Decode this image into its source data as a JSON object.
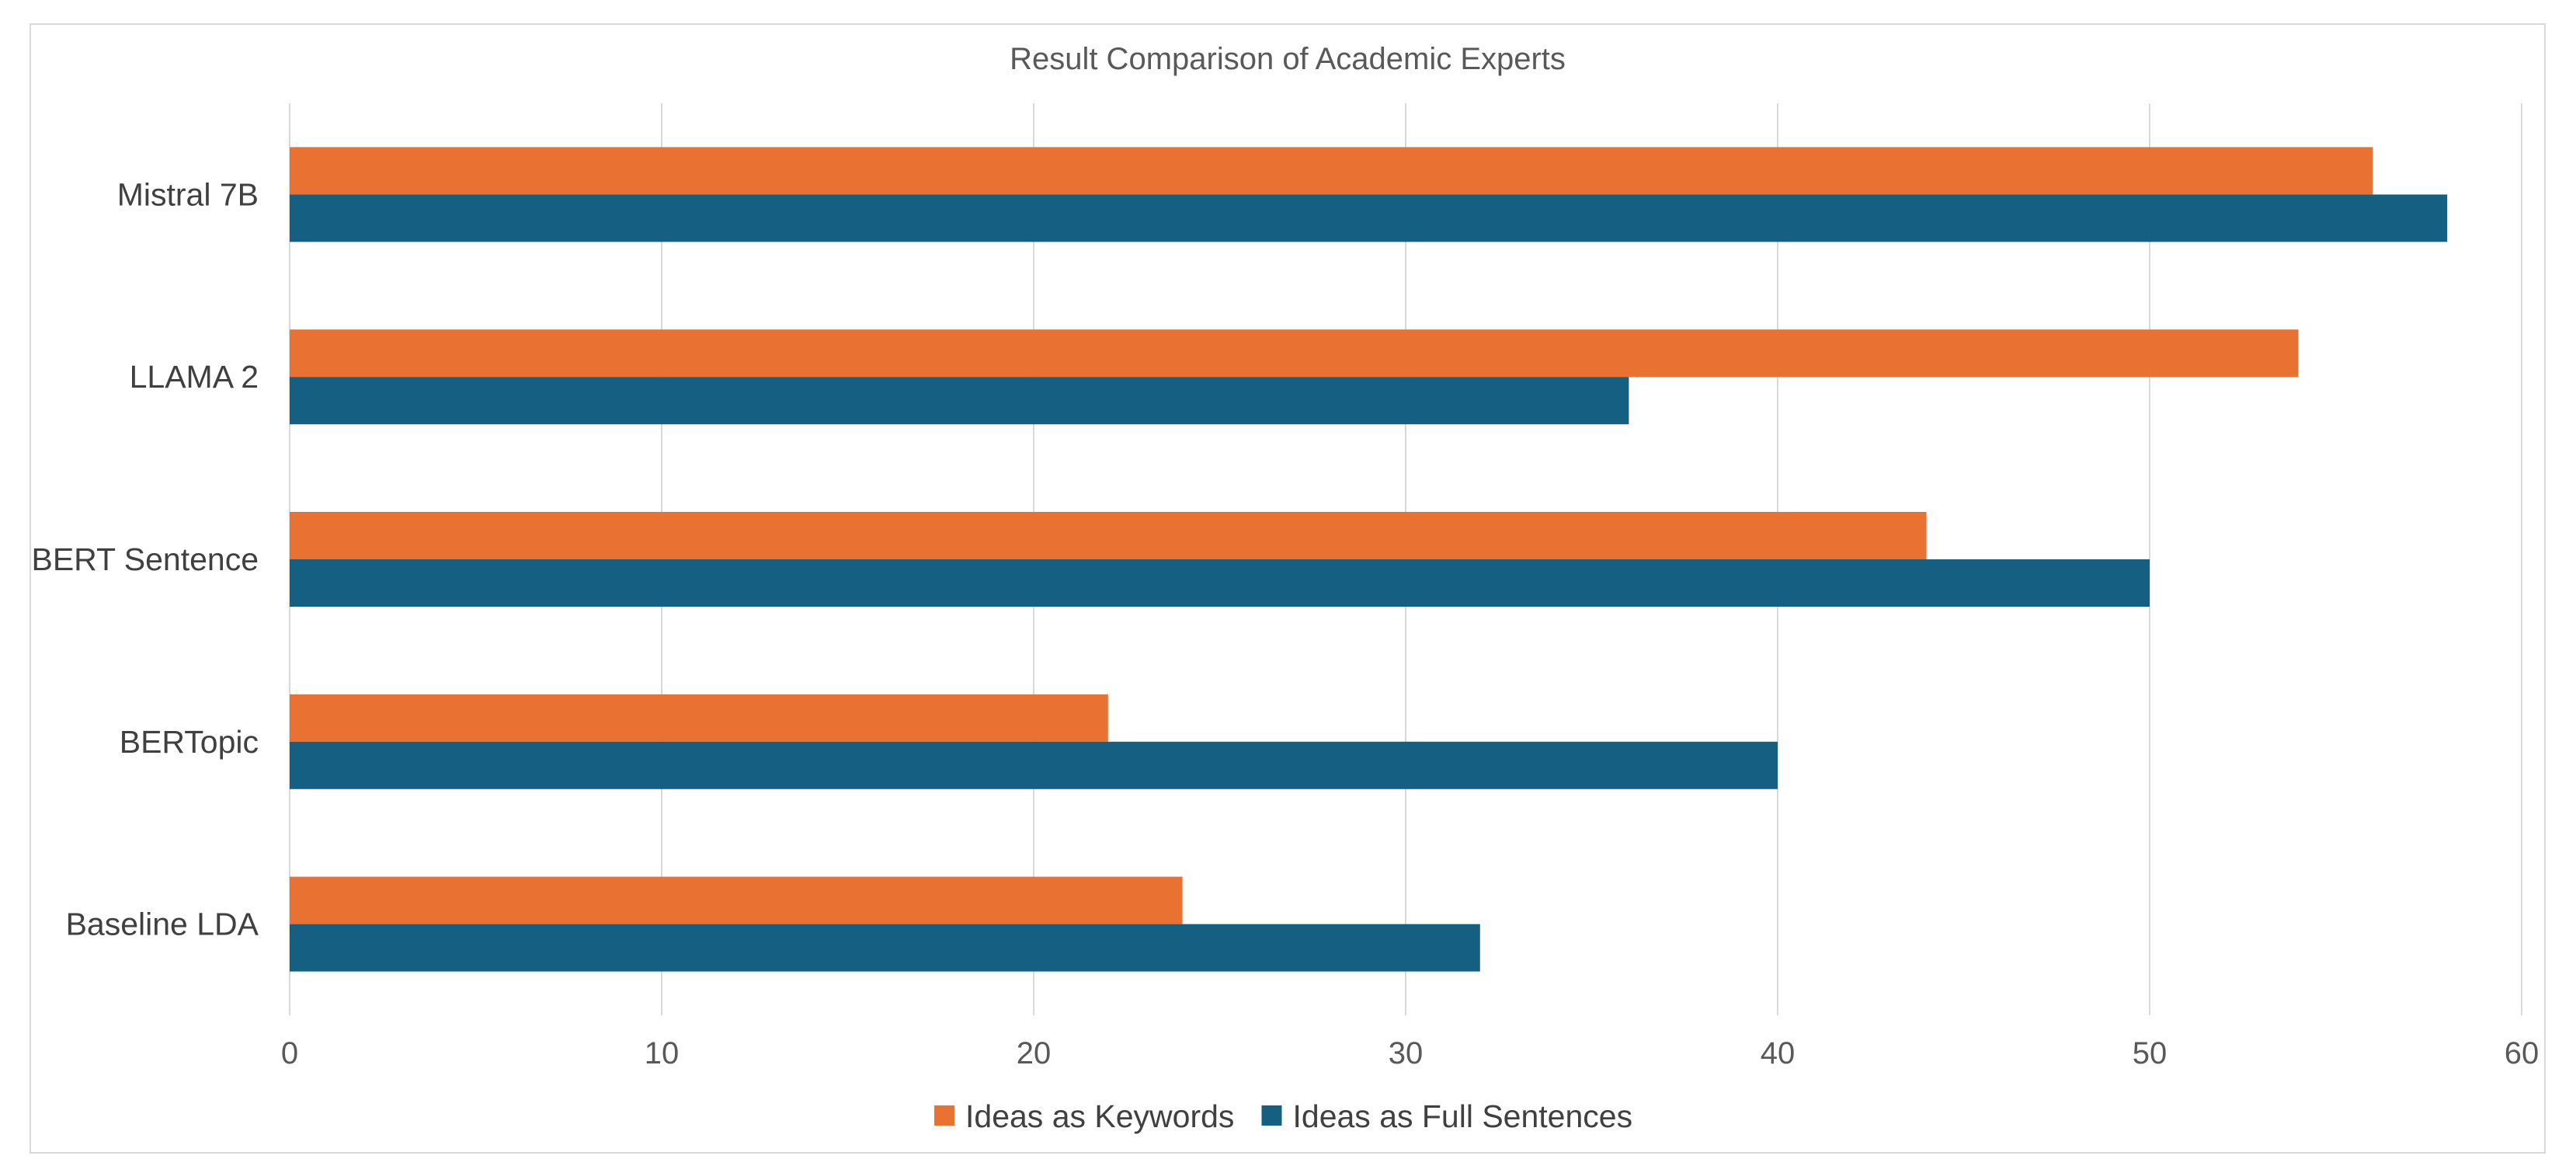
{
  "chart_data": {
    "type": "bar",
    "orientation": "horizontal",
    "title": "Result Comparison of Academic Experts",
    "xlabel": "",
    "ylabel": "",
    "categories": [
      "Mistral 7B",
      "LLAMA 2",
      "BERT Sentence",
      "BERTopic",
      "Baseline LDA"
    ],
    "series": [
      {
        "name": "Ideas as Keywords",
        "color": "#e97132",
        "values": [
          56,
          54,
          44,
          22,
          24
        ]
      },
      {
        "name": "Ideas as Full Sentences",
        "color": "#156082",
        "values": [
          58,
          36,
          50,
          40,
          32
        ]
      }
    ],
    "xlim": [
      0,
      60
    ],
    "xticks": [
      "0",
      "10",
      "20",
      "30",
      "40",
      "50",
      "60"
    ],
    "grid": "vertical",
    "legend_position": "bottom"
  }
}
